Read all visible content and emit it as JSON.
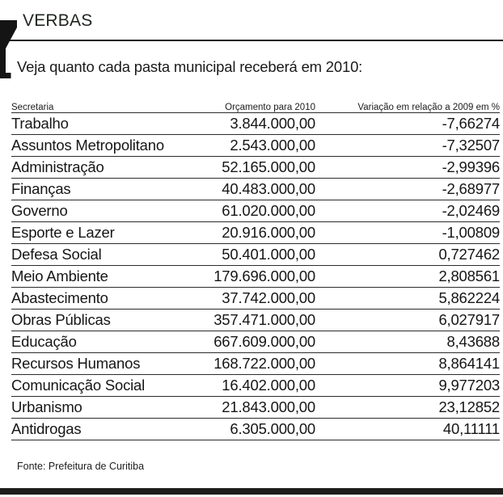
{
  "chart_data": {
    "type": "table",
    "title": "VERBAS",
    "subtitle": "Veja quanto cada pasta municipal receberá em 2010:",
    "columns": [
      "Secretaria",
      "Orçamento para 2010",
      "Variação em relação a 2009 em %"
    ],
    "rows": [
      {
        "secretaria": "Trabalho",
        "orcamento": "3.844.000,00",
        "variacao": "-7,66274"
      },
      {
        "secretaria": "Assuntos Metropolitano",
        "orcamento": "2.543.000,00",
        "variacao": "-7,32507"
      },
      {
        "secretaria": "Administração",
        "orcamento": "52.165.000,00",
        "variacao": "-2,99396"
      },
      {
        "secretaria": "Finanças",
        "orcamento": "40.483.000,00",
        "variacao": "-2,68977"
      },
      {
        "secretaria": "Governo",
        "orcamento": "61.020.000,00",
        "variacao": "-2,02469"
      },
      {
        "secretaria": "Esporte e Lazer",
        "orcamento": "20.916.000,00",
        "variacao": "-1,00809"
      },
      {
        "secretaria": "Defesa Social",
        "orcamento": "50.401.000,00",
        "variacao": "0,727462"
      },
      {
        "secretaria": "Meio Ambiente",
        "orcamento": "179.696.000,00",
        "variacao": "2,808561"
      },
      {
        "secretaria": "Abastecimento",
        "orcamento": "37.742.000,00",
        "variacao": "5,862224"
      },
      {
        "secretaria": "Obras Públicas",
        "orcamento": "357.471.000,00",
        "variacao": "6,027917"
      },
      {
        "secretaria": "Educação",
        "orcamento": "667.609.000,00",
        "variacao": "8,43688"
      },
      {
        "secretaria": "Recursos Humanos",
        "orcamento": "168.722.000,00",
        "variacao": "8,864141"
      },
      {
        "secretaria": "Comunicação Social",
        "orcamento": "16.402.000,00",
        "variacao": "9,977203"
      },
      {
        "secretaria": "Urbanismo",
        "orcamento": "21.843.000,00",
        "variacao": "23,12852"
      },
      {
        "secretaria": "Antidrogas",
        "orcamento": "6.305.000,00",
        "variacao": "40,11111"
      }
    ],
    "source": "Fonte: Prefeitura de Curitiba",
    "layout": {
      "grid": "horizontal-rules-only",
      "legend": "none"
    }
  },
  "colors": {
    "band_green": "#d5e8c9",
    "ink": "#1c1c1c"
  }
}
